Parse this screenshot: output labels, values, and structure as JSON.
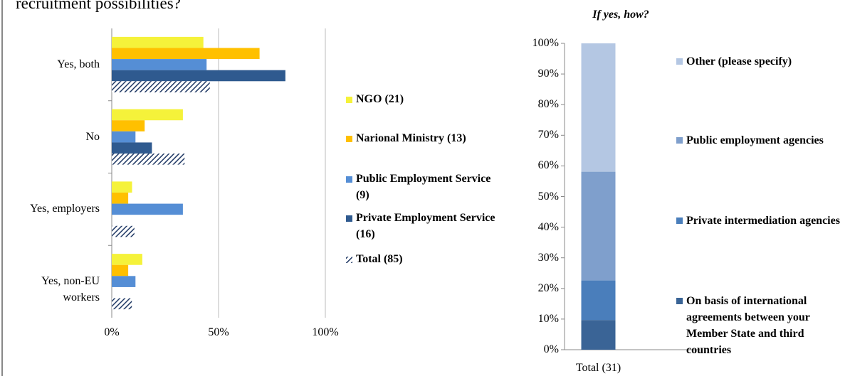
{
  "chart_data": [
    {
      "type": "hbar",
      "title": "recruitment possibilities?",
      "categories": [
        "Yes, both",
        "No",
        "Yes, employers",
        "Yes, non-EU workers"
      ],
      "series": [
        {
          "name": "NGO (21)",
          "color": "#f5f23a",
          "values": [
            42.9,
            33.3,
            9.5,
            14.3
          ]
        },
        {
          "name": "Narional Ministry (13)",
          "color": "#ffc000",
          "values": [
            69.2,
            15.4,
            7.7,
            7.7
          ]
        },
        {
          "name": "Public Employment Service (9)",
          "color": "#558ed5",
          "values": [
            44.4,
            11.1,
            33.3,
            11.1
          ]
        },
        {
          "name": "Private Employment Service (16)",
          "color": "#2f5a8f",
          "values": [
            81.3,
            18.8,
            0,
            0
          ]
        },
        {
          "name": "Total (85)",
          "color": "#1f3864",
          "hatch": true,
          "values": [
            45.9,
            34.1,
            10.6,
            9.4
          ]
        }
      ],
      "xlim": [
        0,
        100
      ],
      "xticks": [
        {
          "value": 0,
          "label": "0%"
        },
        {
          "value": 50,
          "label": "50%"
        },
        {
          "value": 100,
          "label": "100%"
        }
      ],
      "grid": true
    },
    {
      "type": "stacked-column",
      "title": "If yes, how?",
      "categories": [
        "Total (31)"
      ],
      "series": [
        {
          "name": "On basis of international agreements between your Member State and third countries",
          "color": "#3a6496",
          "values": [
            9.7
          ]
        },
        {
          "name": "Private intermediation agencies",
          "color": "#4a7ebb",
          "values": [
            12.9
          ]
        },
        {
          "name": "Public employment agencies",
          "color": "#7f9fcc",
          "values": [
            35.5
          ]
        },
        {
          "name": "Other (please specify)",
          "color": "#b4c7e3",
          "values": [
            41.9
          ]
        }
      ],
      "ylim": [
        0,
        100
      ],
      "yticks": [
        {
          "value": 0,
          "label": "0%"
        },
        {
          "value": 10,
          "label": "10%"
        },
        {
          "value": 20,
          "label": "20%"
        },
        {
          "value": 30,
          "label": "30%"
        },
        {
          "value": 40,
          "label": "40%"
        },
        {
          "value": 50,
          "label": "50%"
        },
        {
          "value": 60,
          "label": "60%"
        },
        {
          "value": 70,
          "label": "70%"
        },
        {
          "value": 80,
          "label": "80%"
        },
        {
          "value": 90,
          "label": "90%"
        },
        {
          "value": 100,
          "label": "100%"
        }
      ],
      "grid": false
    }
  ]
}
